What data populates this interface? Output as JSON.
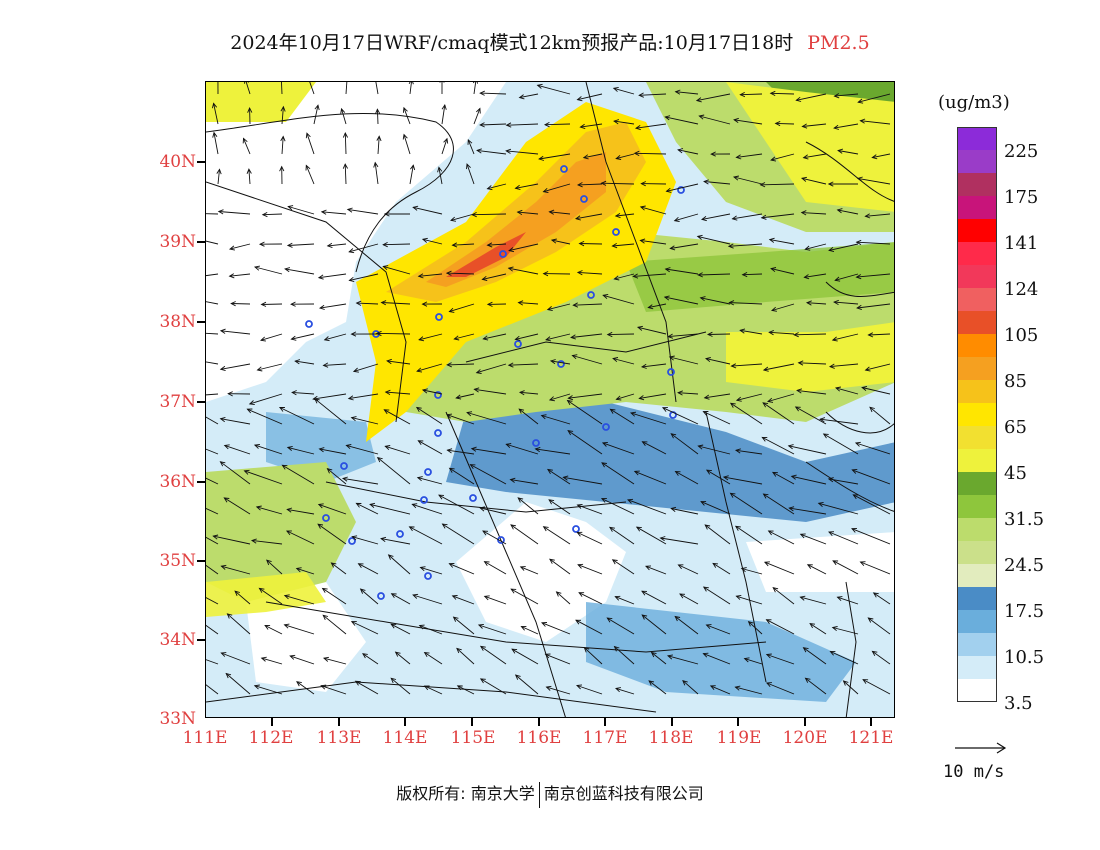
{
  "title": {
    "main": "2024年10月17日WRF/cmaq模式12km预报产品:10月17日18时",
    "variable": "PM2.5",
    "variable_color": "#e04040"
  },
  "map": {
    "lat_labels": [
      "40N",
      "39N",
      "38N",
      "37N",
      "36N",
      "35N",
      "34N",
      "33N"
    ],
    "lon_labels": [
      "111E",
      "112E",
      "113E",
      "114E",
      "115E",
      "116E",
      "117E",
      "118E",
      "119E",
      "120E",
      "121E"
    ],
    "label_color": "#e04040"
  },
  "colorbar": {
    "unit": "(ug/m3)",
    "colors": [
      "#8c2bd9",
      "#9a3cc8",
      "#b03060",
      "#c8147a",
      "#ff0000",
      "#ff2a4a",
      "#f2385a",
      "#f06060",
      "#e85028",
      "#ff8c00",
      "#f5a020",
      "#f6c21a",
      "#ffe600",
      "#f2e030",
      "#eef23c",
      "#6aa82e",
      "#8ec63c",
      "#bcdc6c",
      "#cbe08a",
      "#e2ecbe",
      "#4a8cc6",
      "#6aaedc",
      "#a2d0ee",
      "#d4ecf8",
      "#ffffff"
    ],
    "labels": [
      "225",
      "175",
      "141",
      "124",
      "105",
      "85",
      "65",
      "45",
      "31.5",
      "24.5",
      "17.5",
      "10.5",
      "3.5"
    ]
  },
  "reference_vector": {
    "label": "10 m/s"
  },
  "footer": {
    "left": "版权所有: 南京大学",
    "right": "南京创蓝科技有限公司"
  }
}
